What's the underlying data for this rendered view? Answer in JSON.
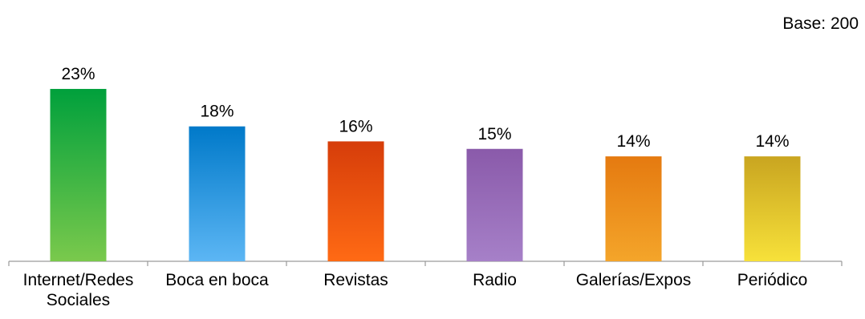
{
  "chart_data": {
    "type": "bar",
    "title": "",
    "xlabel": "",
    "ylabel": "",
    "base_note": "Base: 200",
    "categories": [
      "Internet/Redes Sociales",
      "Boca en boca",
      "Revistas",
      "Radio",
      "Galerías/Expos",
      "Periódico"
    ],
    "category_lines": [
      [
        "Internet/Redes",
        "Sociales"
      ],
      [
        "Boca en boca"
      ],
      [
        "Revistas"
      ],
      [
        "Radio"
      ],
      [
        "Galerías/Expos"
      ],
      [
        "Periódico"
      ]
    ],
    "values": [
      23,
      18,
      16,
      15,
      14,
      14
    ],
    "value_labels": [
      "23%",
      "18%",
      "16%",
      "15%",
      "14%",
      "14%"
    ],
    "unit": "%",
    "ylim": [
      0,
      25
    ],
    "grid": false,
    "legend": "none",
    "bar_gradients": [
      [
        "#00a03c",
        "#7ac94c"
      ],
      [
        "#0079c9",
        "#5cb6f4"
      ],
      [
        "#d63d0a",
        "#ff6a14"
      ],
      [
        "#8a5aaa",
        "#a680c8"
      ],
      [
        "#e57a10",
        "#f4a52a"
      ],
      [
        "#c9a520",
        "#f7e13a"
      ]
    ],
    "axis_color": "#9a9a9a",
    "text_color": "#000000"
  }
}
